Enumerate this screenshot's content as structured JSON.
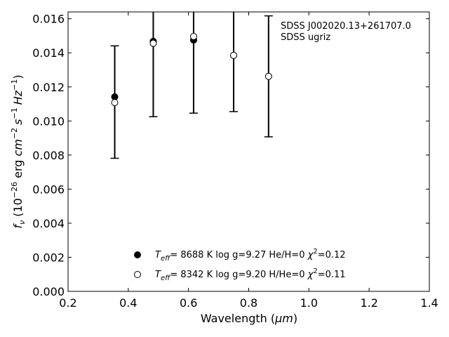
{
  "chart_data": {
    "type": "scatter",
    "title": "",
    "xlabel": {
      "main": "Wavelength (",
      "unit": "μm",
      "close": ")"
    },
    "ylabel": {
      "f": "f",
      "nu": "ν",
      "open": " (10",
      "exp": "−26",
      "erg": " erg ",
      "cm": "cm",
      "cmexp": "−2",
      "s": "s",
      "sexp": "−1",
      "hz": "Hz",
      "hzexp": "−1",
      "close": ")"
    },
    "xlim": [
      0.2,
      1.4
    ],
    "ylim": [
      0.0,
      0.0164
    ],
    "xticks": [
      "0.2",
      "0.4",
      "0.6",
      "0.8",
      "1.0",
      "1.2",
      "1.4"
    ],
    "xtick_values": [
      0.2,
      0.4,
      0.6,
      0.8,
      1.0,
      1.2,
      1.4
    ],
    "yticks": [
      "0.000",
      "0.002",
      "0.004",
      "0.006",
      "0.008",
      "0.010",
      "0.012",
      "0.014",
      "0.016"
    ],
    "ytick_values": [
      0.0,
      0.002,
      0.004,
      0.006,
      0.008,
      0.01,
      0.012,
      0.014,
      0.016
    ],
    "grid": false,
    "annotations": [
      "SDSS J002020.13+261707.0",
      "SDSS ugriz"
    ],
    "observed": {
      "bands": [
        "u",
        "g",
        "r",
        "i",
        "z"
      ],
      "x": [
        0.355,
        0.483,
        0.617,
        0.75,
        0.866
      ],
      "y": [
        0.01111,
        0.01475,
        0.01496,
        0.01385,
        0.01262
      ],
      "yerr": [
        0.0033,
        0.0045,
        0.0045,
        0.0033,
        0.00355
      ]
    },
    "series": [
      {
        "name": {
          "T": "T",
          "eff": "eff",
          "eq": "=  8688 K  log g=9.27  He/H=0  ",
          "chi": "χ",
          "sq": "2",
          "chival": "=0.12"
        },
        "marker": "filled-circle",
        "x": [
          0.355,
          0.483,
          0.617,
          0.75,
          0.866
        ],
        "y": [
          0.01142,
          0.01468,
          0.01475,
          0.01385,
          0.01262
        ]
      },
      {
        "name": {
          "T": "T",
          "eff": "eff",
          "eq": "=  8342 K  log g=9.20  H/He=0  ",
          "chi": "χ",
          "sq": "2",
          "chival": "=0.11"
        },
        "marker": "open-circle",
        "x": [
          0.355,
          0.483,
          0.617,
          0.75,
          0.866
        ],
        "y": [
          0.01108,
          0.01456,
          0.01496,
          0.01385,
          0.01262
        ]
      }
    ],
    "legend_position": "lower-center"
  }
}
